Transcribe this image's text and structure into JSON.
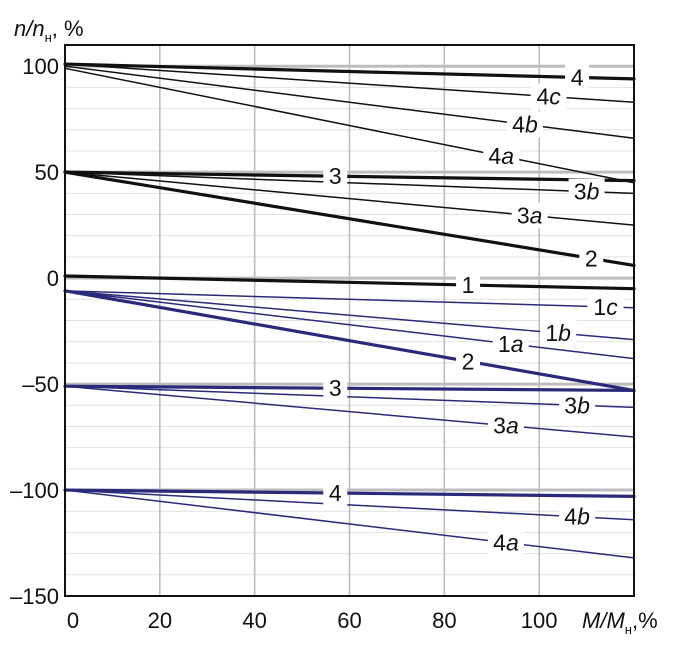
{
  "chart_data": {
    "type": "line",
    "xlabel": {
      "main": "M/M",
      "sub": "н",
      "unit": ",%"
    },
    "ylabel": {
      "main": "n/n",
      "sub": "н",
      "unit": ", %"
    },
    "xlim": [
      0,
      120
    ],
    "ylim": [
      -150,
      110
    ],
    "x_ticks": [
      0,
      20,
      40,
      60,
      80,
      100
    ],
    "y_ticks": [
      100,
      50,
      0,
      -50,
      -100,
      -150
    ],
    "x_tick_labels": [
      "0",
      "20",
      "40",
      "60",
      "80",
      "100"
    ],
    "y_tick_labels": [
      "100",
      "50",
      "0",
      "–50",
      "–100",
      "–150"
    ],
    "grid": true,
    "colors": {
      "upper": "#111111",
      "lower": "#2b2a7a",
      "grid": "#bdbdbd"
    },
    "series": [
      {
        "name": "4",
        "group": "upper",
        "weight": "bold",
        "x": [
          0,
          120
        ],
        "y": [
          101,
          94
        ],
        "label_at": 108
      },
      {
        "name": "4c",
        "group": "upper",
        "weight": "thin",
        "x": [
          0,
          120
        ],
        "y": [
          101,
          83
        ],
        "label_at": 102
      },
      {
        "name": "4b",
        "group": "upper",
        "weight": "thin",
        "x": [
          0,
          120
        ],
        "y": [
          100,
          66
        ],
        "label_at": 97
      },
      {
        "name": "4a",
        "group": "upper",
        "weight": "thin",
        "x": [
          0,
          120
        ],
        "y": [
          99,
          45
        ],
        "label_at": 92
      },
      {
        "name": "3",
        "group": "upper",
        "weight": "bold",
        "x": [
          0,
          120
        ],
        "y": [
          50,
          46
        ],
        "label_at": 57
      },
      {
        "name": "3b",
        "group": "upper",
        "weight": "thin",
        "x": [
          0,
          120
        ],
        "y": [
          50,
          40
        ],
        "label_at": 110
      },
      {
        "name": "3a",
        "group": "upper",
        "weight": "thin",
        "x": [
          0,
          120
        ],
        "y": [
          50,
          25
        ],
        "label_at": 98
      },
      {
        "name": "2",
        "group": "upper",
        "weight": "bold",
        "x": [
          0,
          120
        ],
        "y": [
          50,
          6
        ],
        "label_at": 111
      },
      {
        "name": "1",
        "group": "upper",
        "weight": "bold",
        "x": [
          0,
          120
        ],
        "y": [
          1,
          -5
        ],
        "label_at": 85
      },
      {
        "name": "1c",
        "group": "lower",
        "weight": "thin",
        "x": [
          0,
          120
        ],
        "y": [
          -6,
          -14
        ],
        "label_at": 114
      },
      {
        "name": "1b",
        "group": "lower",
        "weight": "thin",
        "x": [
          0,
          120
        ],
        "y": [
          -6,
          -29
        ],
        "label_at": 104
      },
      {
        "name": "1a",
        "group": "lower",
        "weight": "thin",
        "x": [
          0,
          120
        ],
        "y": [
          -6,
          -38
        ],
        "label_at": 94
      },
      {
        "name": "2",
        "group": "lower",
        "weight": "bold",
        "x": [
          0,
          120
        ],
        "y": [
          -6,
          -53
        ],
        "label_at": 85
      },
      {
        "name": "3",
        "group": "lower",
        "weight": "bold",
        "x": [
          0,
          120
        ],
        "y": [
          -51,
          -53
        ],
        "label_at": 57
      },
      {
        "name": "3b",
        "group": "lower",
        "weight": "thin",
        "x": [
          0,
          120
        ],
        "y": [
          -51,
          -61
        ],
        "label_at": 108
      },
      {
        "name": "3a",
        "group": "lower",
        "weight": "thin",
        "x": [
          0,
          120
        ],
        "y": [
          -51,
          -75
        ],
        "label_at": 93
      },
      {
        "name": "4",
        "group": "lower",
        "weight": "bold",
        "x": [
          0,
          120
        ],
        "y": [
          -100,
          -103
        ],
        "label_at": 57
      },
      {
        "name": "4b",
        "group": "lower",
        "weight": "thin",
        "x": [
          0,
          120
        ],
        "y": [
          -100,
          -114
        ],
        "label_at": 108
      },
      {
        "name": "4a",
        "group": "lower",
        "weight": "thin",
        "x": [
          0,
          120
        ],
        "y": [
          -100,
          -132
        ],
        "label_at": 93
      }
    ]
  }
}
